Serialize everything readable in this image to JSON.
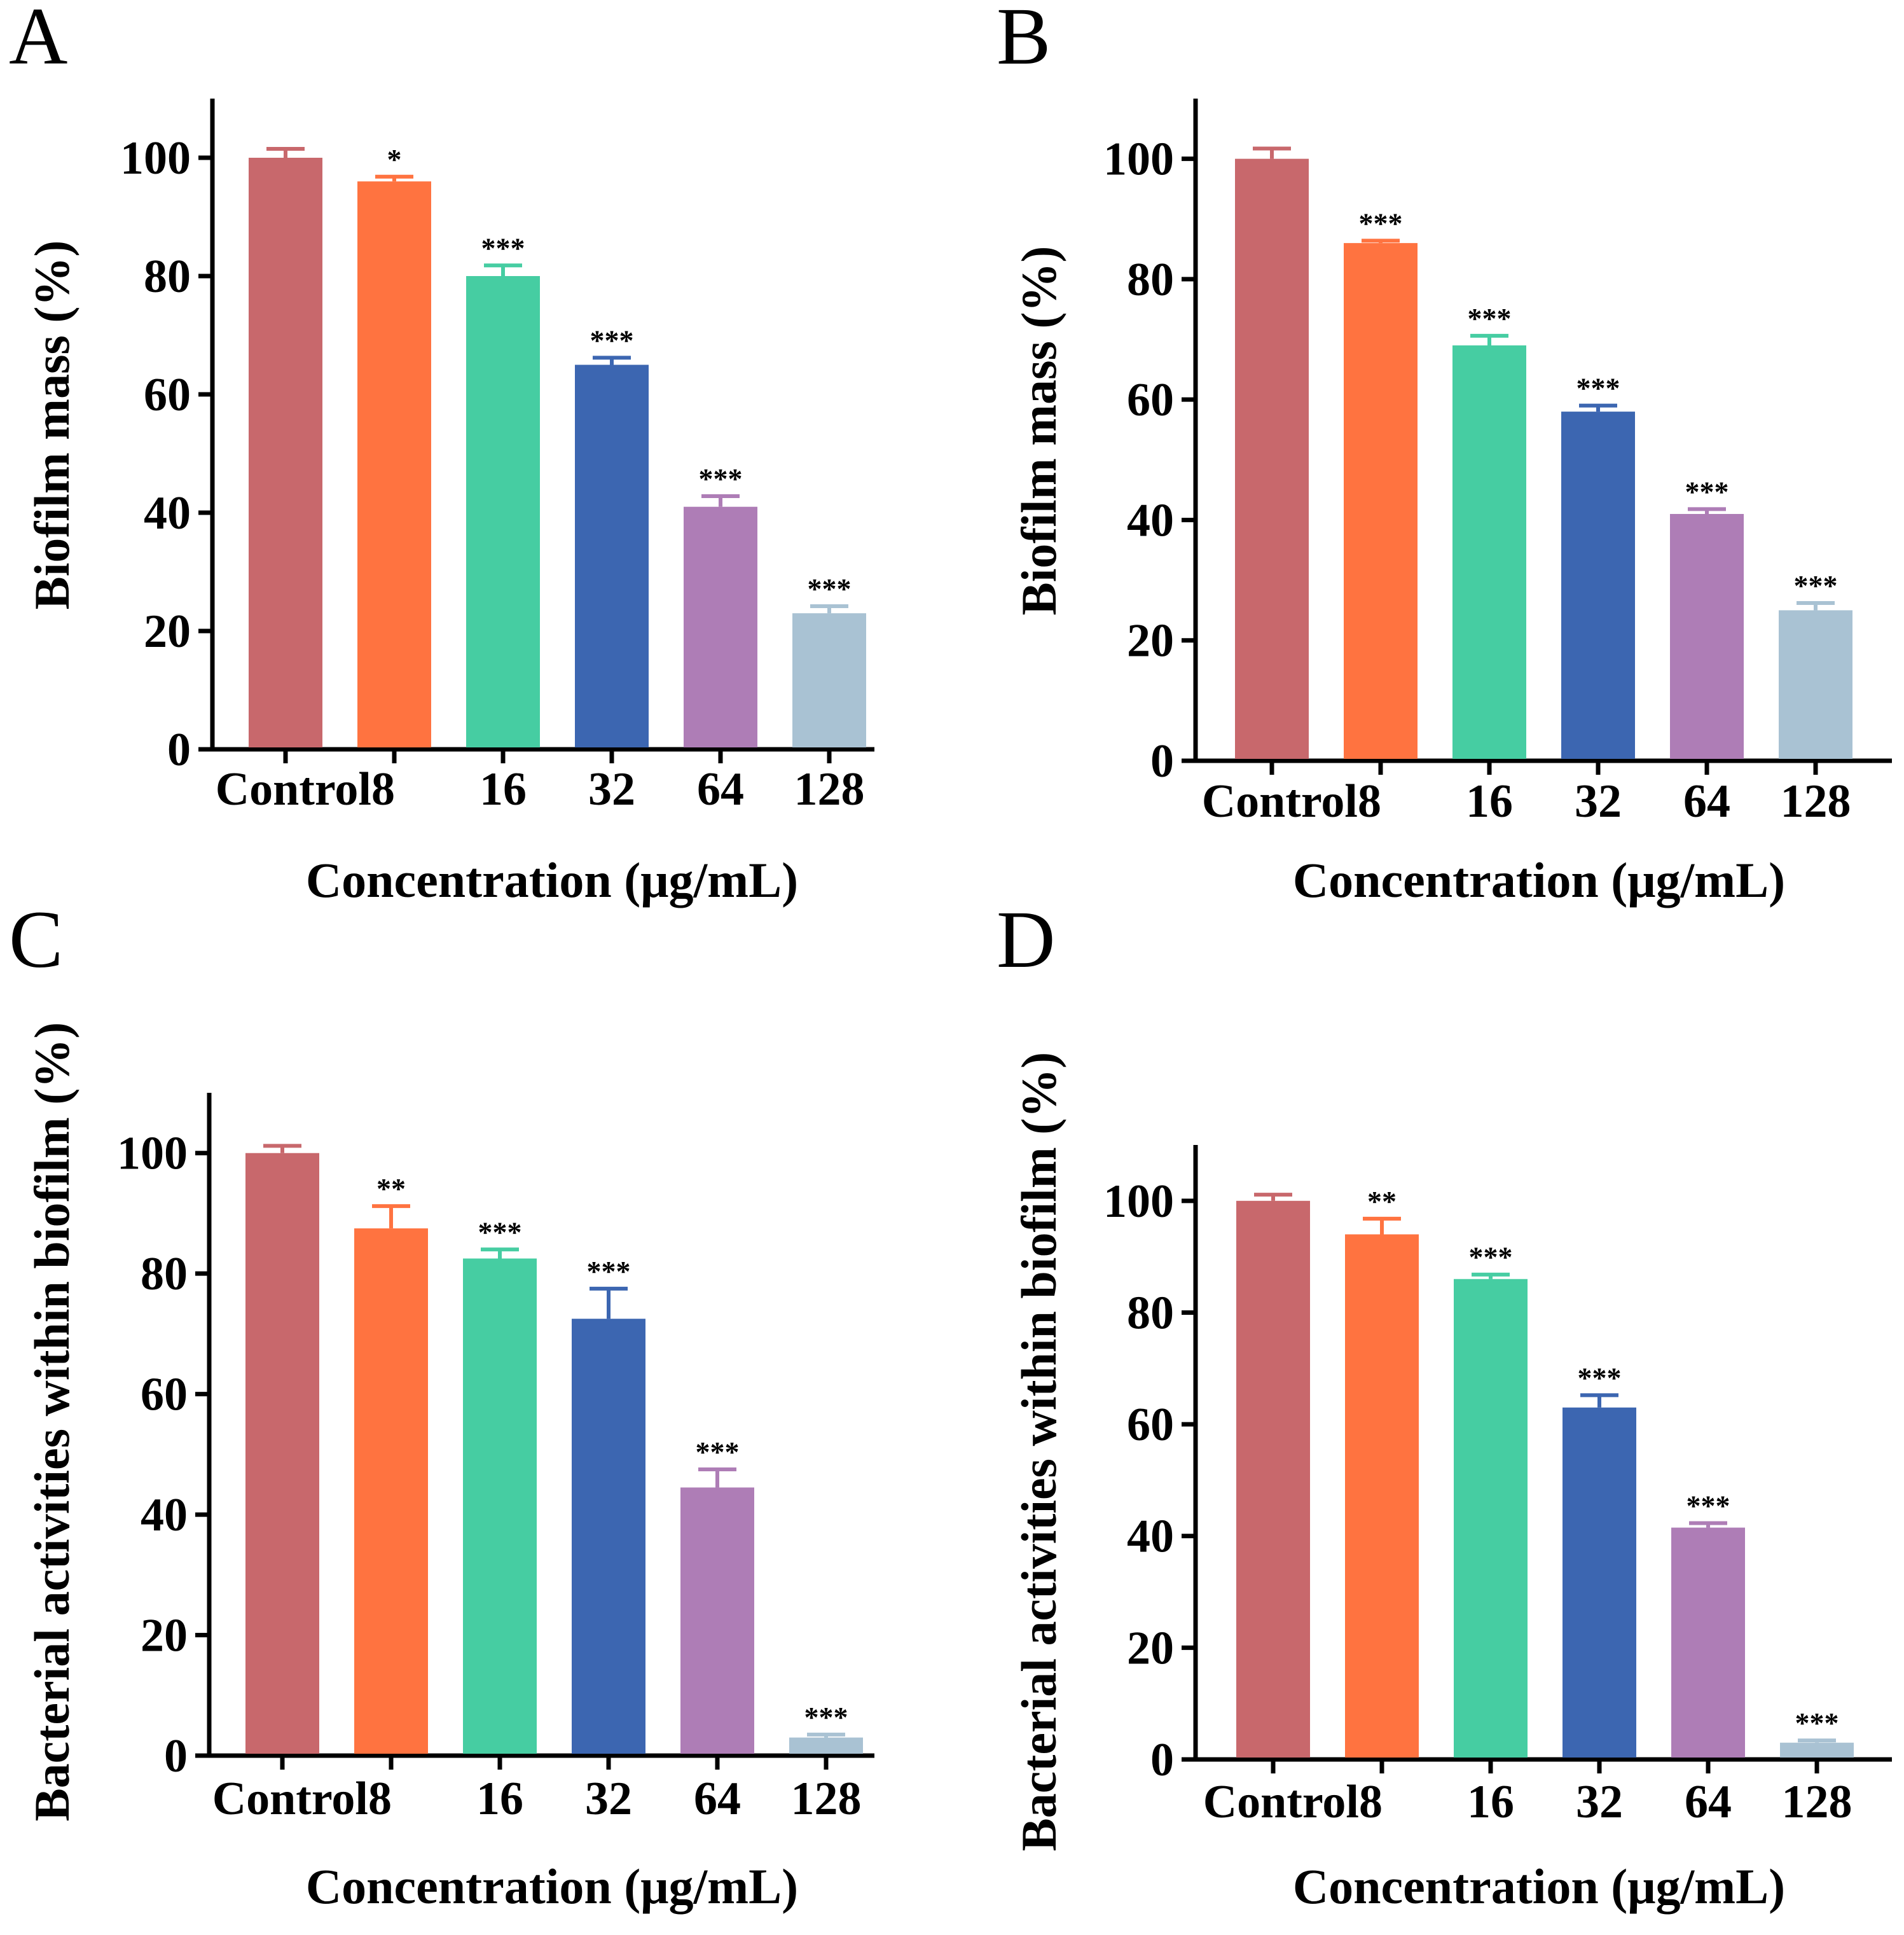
{
  "colors": [
    "#C8686C",
    "#FF7340",
    "#46CDA2",
    "#3C66B1",
    "#AE7DB6",
    "#A9C2D3"
  ],
  "chart_data": [
    {
      "panel": "A",
      "type": "bar",
      "categories": [
        "Control",
        "8",
        "16",
        "32",
        "64",
        "128"
      ],
      "values": [
        100,
        96,
        80,
        65,
        41,
        23
      ],
      "errors": [
        1.5,
        0.8,
        1.8,
        1.2,
        1.8,
        1.2
      ],
      "significance": [
        "",
        "*",
        "***",
        "***",
        "***",
        "***"
      ],
      "xlabel": "Concentration (μg/mL)",
      "ylabel": "Biofilm mass (%)",
      "yticks": [
        0,
        20,
        40,
        60,
        80,
        100
      ],
      "ylim": [
        0,
        110
      ]
    },
    {
      "panel": "B",
      "type": "bar",
      "categories": [
        "Control",
        "8",
        "16",
        "32",
        "64",
        "128"
      ],
      "values": [
        100,
        86,
        69,
        58,
        41,
        25
      ],
      "errors": [
        1.7,
        0.4,
        1.6,
        1.0,
        0.8,
        1.2
      ],
      "significance": [
        "",
        "***",
        "***",
        "***",
        "***",
        "***"
      ],
      "xlabel": "Concentration (μg/mL)",
      "ylabel": "Biofilm mass (%)",
      "yticks": [
        0,
        20,
        40,
        60,
        80,
        100
      ],
      "ylim": [
        0,
        110
      ]
    },
    {
      "panel": "C",
      "type": "bar",
      "categories": [
        "Control",
        "8",
        "16",
        "32",
        "64",
        "128"
      ],
      "values": [
        100,
        87.5,
        82.5,
        72.5,
        44.5,
        3
      ],
      "errors": [
        1.2,
        3.7,
        1.5,
        5.0,
        3.0,
        0.5
      ],
      "significance": [
        "",
        "**",
        "***",
        "***",
        "***",
        "***"
      ],
      "xlabel": "Concentration (μg/mL)",
      "ylabel": "Bacterial activities within biofilm (%)",
      "yticks": [
        0,
        20,
        40,
        60,
        80,
        100
      ],
      "ylim": [
        0,
        110
      ]
    },
    {
      "panel": "D",
      "type": "bar",
      "categories": [
        "Control",
        "8",
        "16",
        "32",
        "64",
        "128"
      ],
      "values": [
        100,
        94,
        86,
        63,
        41.5,
        3
      ],
      "errors": [
        1.1,
        2.8,
        0.8,
        2.2,
        0.8,
        0.4
      ],
      "significance": [
        "",
        "**",
        "***",
        "***",
        "***",
        "***"
      ],
      "xlabel": "Concentration (μg/mL)",
      "ylabel": "Bacterial activities within biofilm (%)",
      "yticks": [
        0,
        20,
        40,
        60,
        80,
        100
      ],
      "ylim": [
        0,
        110
      ]
    }
  ]
}
